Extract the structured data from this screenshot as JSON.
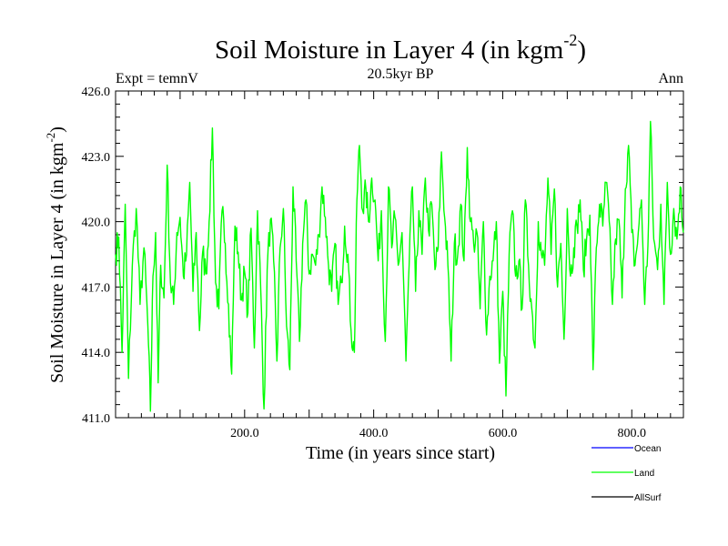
{
  "chart_data": {
    "type": "line",
    "title": "Soil Moisture in Layer 4 (in kgm",
    "title_sup": "-2",
    "title_close": ")",
    "subtitle": "20.5kyr BP",
    "left_label": "Expt = temnV",
    "right_label": "Ann",
    "xlabel": "Time (in years since start)",
    "ylabel": "Soil Moisture in Layer 4 (in kgm",
    "ylabel_sup": "-2",
    "ylabel_close": ")",
    "xlim": [
      0,
      880
    ],
    "ylim": [
      411.0,
      426.0
    ],
    "x_ticks": [
      200,
      400,
      600,
      800
    ],
    "x_tick_labels": [
      "200.0",
      "400.0",
      "600.0",
      "800.0"
    ],
    "y_ticks": [
      411,
      414,
      417,
      420,
      423,
      426
    ],
    "y_tick_labels": [
      "411.0",
      "414.0",
      "417.0",
      "420.0",
      "423.0",
      "426.0"
    ],
    "series": [
      {
        "name": "Land",
        "color": "#00ff00",
        "keypoints": [
          [
            0,
            418.5
          ],
          [
            5,
            419.3
          ],
          [
            10,
            414.0
          ],
          [
            15,
            420.8
          ],
          [
            20,
            412.8
          ],
          [
            26,
            418.0
          ],
          [
            32,
            420.6
          ],
          [
            38,
            416.2
          ],
          [
            44,
            418.8
          ],
          [
            50,
            415.2
          ],
          [
            54,
            411.3
          ],
          [
            58,
            417.5
          ],
          [
            62,
            419.5
          ],
          [
            66,
            412.6
          ],
          [
            70,
            418.0
          ],
          [
            75,
            416.5
          ],
          [
            80,
            422.6
          ],
          [
            85,
            417.2
          ],
          [
            90,
            416.2
          ],
          [
            95,
            419.5
          ],
          [
            100,
            420.2
          ],
          [
            105,
            417.5
          ],
          [
            110,
            418.5
          ],
          [
            115,
            421.8
          ],
          [
            120,
            416.8
          ],
          [
            125,
            419.5
          ],
          [
            130,
            415.0
          ],
          [
            135,
            418.6
          ],
          [
            140,
            417.6
          ],
          [
            145,
            420.0
          ],
          [
            150,
            424.3
          ],
          [
            155,
            417.2
          ],
          [
            160,
            416.0
          ],
          [
            165,
            420.5
          ],
          [
            170,
            419.0
          ],
          [
            175,
            416.2
          ],
          [
            180,
            413.0
          ],
          [
            185,
            419.8
          ],
          [
            190,
            418.6
          ],
          [
            195,
            416.4
          ],
          [
            200,
            417.7
          ],
          [
            205,
            415.8
          ],
          [
            210,
            419.7
          ],
          [
            215,
            414.2
          ],
          [
            220,
            420.5
          ],
          [
            225,
            416.9
          ],
          [
            230,
            411.4
          ],
          [
            235,
            417.8
          ],
          [
            240,
            420.1
          ],
          [
            245,
            418.2
          ],
          [
            250,
            413.6
          ],
          [
            255,
            418.8
          ],
          [
            260,
            420.6
          ],
          [
            265,
            415.2
          ],
          [
            270,
            413.2
          ],
          [
            275,
            421.6
          ],
          [
            280,
            418.2
          ],
          [
            285,
            414.5
          ],
          [
            290,
            419.0
          ],
          [
            295,
            421.0
          ],
          [
            300,
            417.6
          ],
          [
            305,
            418.5
          ],
          [
            310,
            418.0
          ],
          [
            315,
            419.4
          ],
          [
            320,
            421.6
          ],
          [
            325,
            420.2
          ],
          [
            330,
            418.0
          ],
          [
            335,
            416.8
          ],
          [
            340,
            419.0
          ],
          [
            345,
            416.2
          ],
          [
            350,
            417.2
          ],
          [
            355,
            419.8
          ],
          [
            360,
            418.5
          ],
          [
            365,
            415.0
          ],
          [
            370,
            414.0
          ],
          [
            374,
            421.0
          ],
          [
            378,
            423.5
          ],
          [
            383,
            420.5
          ],
          [
            388,
            421.5
          ],
          [
            392,
            420.0
          ],
          [
            397,
            422.0
          ],
          [
            402,
            421.0
          ],
          [
            407,
            418.2
          ],
          [
            412,
            420.5
          ],
          [
            418,
            414.5
          ],
          [
            423,
            421.6
          ],
          [
            428,
            418.8
          ],
          [
            433,
            420.2
          ],
          [
            438,
            418.0
          ],
          [
            444,
            419.5
          ],
          [
            450,
            413.6
          ],
          [
            455,
            418.0
          ],
          [
            460,
            421.6
          ],
          [
            465,
            416.8
          ],
          [
            470,
            420.5
          ],
          [
            475,
            418.5
          ],
          [
            480,
            422.0
          ],
          [
            485,
            419.6
          ],
          [
            490,
            420.8
          ],
          [
            495,
            417.8
          ],
          [
            500,
            418.8
          ],
          [
            505,
            423.2
          ],
          [
            510,
            420.2
          ],
          [
            515,
            418.0
          ],
          [
            520,
            413.6
          ],
          [
            525,
            419.0
          ],
          [
            530,
            418.4
          ],
          [
            535,
            420.8
          ],
          [
            540,
            418.2
          ],
          [
            545,
            423.4
          ],
          [
            550,
            420.0
          ],
          [
            555,
            419.0
          ],
          [
            560,
            419.5
          ],
          [
            565,
            416.0
          ],
          [
            570,
            420.0
          ],
          [
            575,
            414.8
          ],
          [
            580,
            417.5
          ],
          [
            585,
            418.2
          ],
          [
            590,
            420.0
          ],
          [
            595,
            413.5
          ],
          [
            600,
            416.8
          ],
          [
            605,
            412.0
          ],
          [
            610,
            418.5
          ],
          [
            615,
            420.5
          ],
          [
            620,
            417.5
          ],
          [
            625,
            418.2
          ],
          [
            630,
            416.0
          ],
          [
            635,
            421.0
          ],
          [
            640,
            418.0
          ],
          [
            645,
            416.0
          ],
          [
            650,
            414.2
          ],
          [
            655,
            420.0
          ],
          [
            660,
            418.5
          ],
          [
            665,
            418.0
          ],
          [
            670,
            422.0
          ],
          [
            675,
            418.5
          ],
          [
            680,
            421.5
          ],
          [
            685,
            417.0
          ],
          [
            690,
            419.0
          ],
          [
            695,
            414.6
          ],
          [
            700,
            420.6
          ],
          [
            705,
            417.5
          ],
          [
            710,
            418.8
          ],
          [
            715,
            419.8
          ],
          [
            720,
            421.0
          ],
          [
            725,
            417.8
          ],
          [
            730,
            419.2
          ],
          [
            735,
            420.3
          ],
          [
            740,
            413.2
          ],
          [
            745,
            418.8
          ],
          [
            750,
            420.8
          ],
          [
            755,
            419.8
          ],
          [
            760,
            421.8
          ],
          [
            765,
            420.0
          ],
          [
            770,
            416.2
          ],
          [
            775,
            419.2
          ],
          [
            780,
            420.1
          ],
          [
            785,
            416.5
          ],
          [
            790,
            421.5
          ],
          [
            795,
            423.5
          ],
          [
            800,
            419.5
          ],
          [
            805,
            418.0
          ],
          [
            810,
            419.5
          ],
          [
            815,
            421.0
          ],
          [
            820,
            416.2
          ],
          [
            825,
            418.9
          ],
          [
            829,
            424.6
          ],
          [
            834,
            419.2
          ],
          [
            840,
            417.8
          ],
          [
            845,
            420.8
          ],
          [
            850,
            416.2
          ],
          [
            855,
            421.8
          ],
          [
            860,
            418.5
          ],
          [
            865,
            420.6
          ],
          [
            870,
            419.2
          ],
          [
            875,
            421.6
          ],
          [
            880,
            419.5
          ]
        ]
      }
    ],
    "legend": [
      {
        "name": "Ocean",
        "color": "#0000ff"
      },
      {
        "name": "Land",
        "color": "#00ff00"
      },
      {
        "name": "AllSurf",
        "color": "#000000"
      }
    ]
  }
}
